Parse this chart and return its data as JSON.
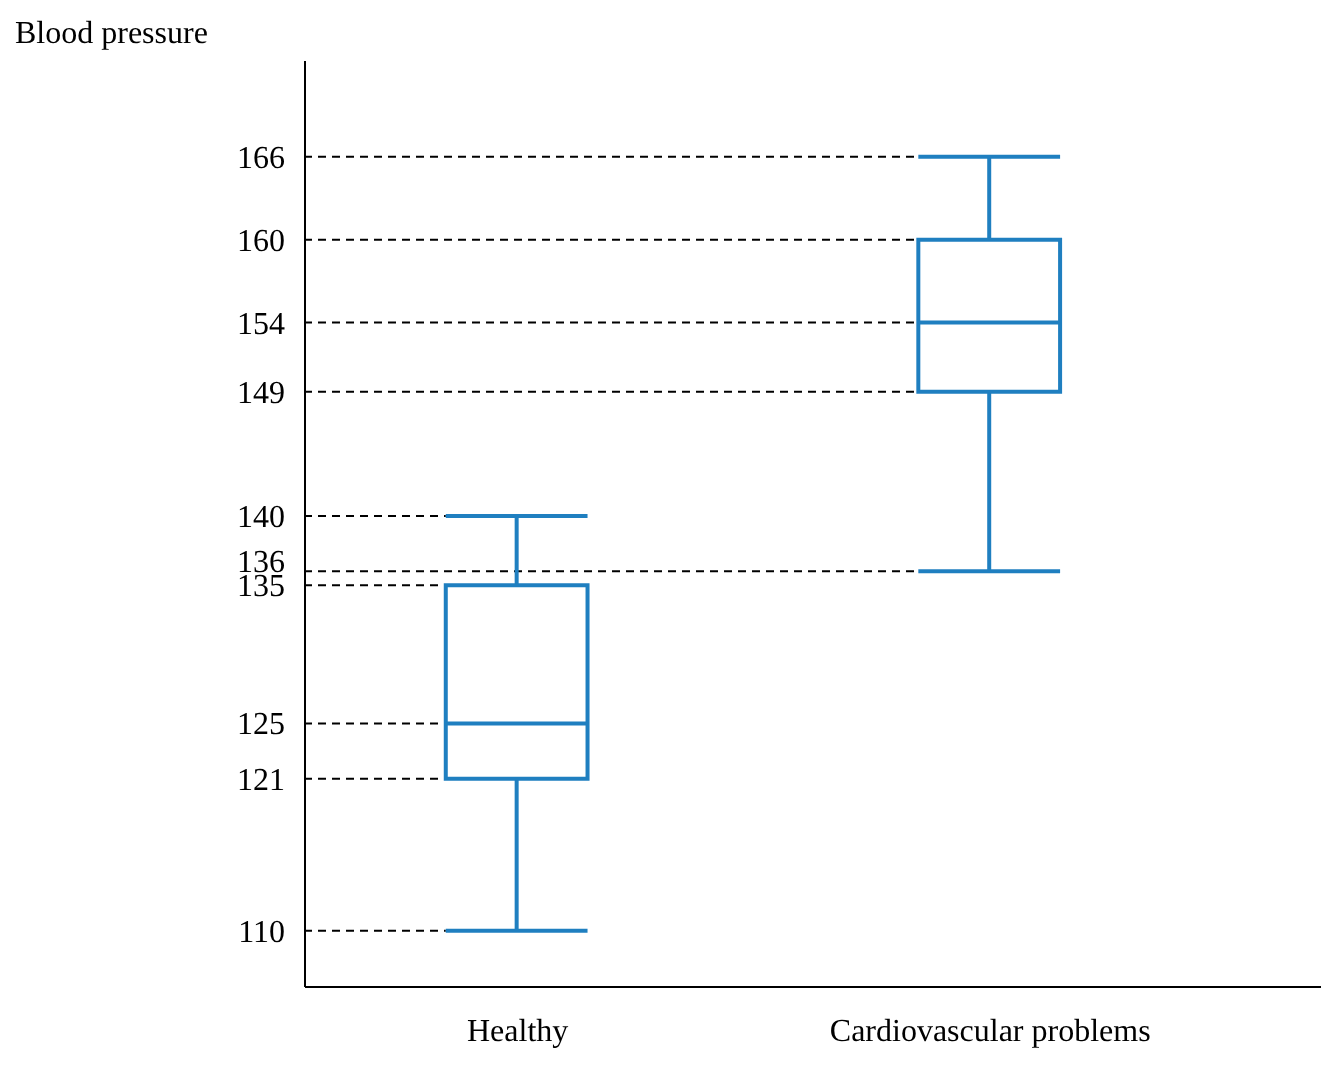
{
  "chart_data": {
    "type": "box",
    "ylabel": "Blood pressure",
    "categories": [
      "Healthy",
      "Cardiovascular problems"
    ],
    "boxes": [
      {
        "low": 110,
        "q1": 121,
        "median": 125,
        "q3": 135,
        "high": 140
      },
      {
        "low": 136,
        "q1": 149,
        "median": 154,
        "q3": 160,
        "high": 166
      }
    ],
    "color": "#1f7fc0",
    "ylim": [
      106,
      173
    ],
    "yticks": [
      110,
      121,
      125,
      135,
      136,
      140,
      149,
      154,
      160,
      166
    ],
    "grid": false,
    "ref_lines": [
      {
        "axis": "y",
        "value": 110,
        "line_style": "dashed",
        "color": "#000000"
      },
      {
        "axis": "y",
        "value": 121,
        "line_style": "dashed",
        "color": "#000000"
      },
      {
        "axis": "y",
        "value": 125,
        "line_style": "dashed",
        "color": "#000000"
      },
      {
        "axis": "y",
        "value": 135,
        "line_style": "dashed",
        "color": "#000000"
      },
      {
        "axis": "y",
        "value": 140,
        "line_style": "dashed",
        "color": "#000000"
      },
      {
        "axis": "y",
        "value": 136,
        "line_style": "dashed",
        "color": "#000000"
      },
      {
        "axis": "y",
        "value": 149,
        "line_style": "dashed",
        "color": "#000000"
      },
      {
        "axis": "y",
        "value": 154,
        "line_style": "dashed",
        "color": "#000000"
      },
      {
        "axis": "y",
        "value": 160,
        "line_style": "dashed",
        "color": "#000000"
      },
      {
        "axis": "y",
        "value": 166,
        "line_style": "dashed",
        "color": "#000000"
      }
    ]
  }
}
